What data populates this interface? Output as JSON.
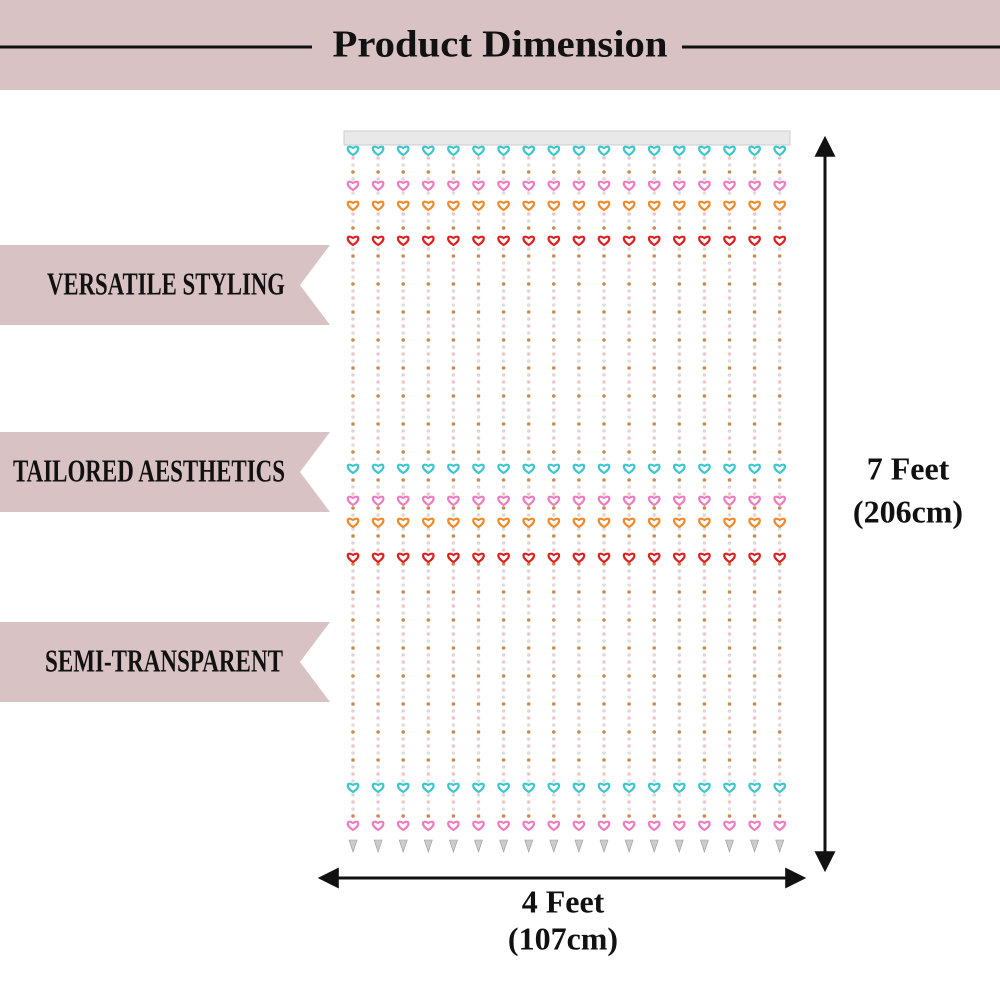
{
  "header": {
    "title": "Product Dimension"
  },
  "features": [
    "VERSATILE STYLING",
    "TAILORED AESTHETICS",
    "SEMI-TRANSPARENT"
  ],
  "dimensions": {
    "height": {
      "label": "7 Feet",
      "metric": "(206cm)"
    },
    "width": {
      "label": "4 Feet",
      "metric": "(107cm)"
    }
  }
}
